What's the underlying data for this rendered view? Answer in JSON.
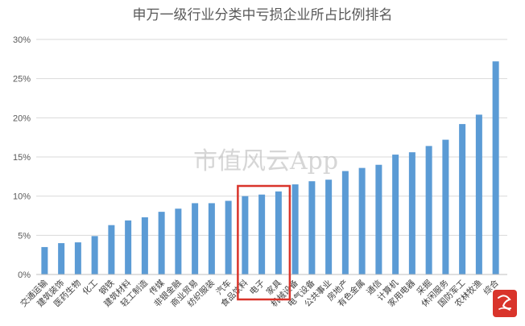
{
  "watermark": "市值风云App",
  "colors": {
    "bar": "#5b9bd5",
    "highlight": "#d9342b",
    "grid": "#d9d9d9",
    "text": "#595959",
    "logo": "#d9342b"
  },
  "chart_data": {
    "type": "bar",
    "title": "申万一级行业分类中亏损企业所占比例排名",
    "categories": [
      "交通运输",
      "建筑装饰",
      "医药生物",
      "化工",
      "钢铁",
      "建筑材料",
      "轻工制造",
      "传媒",
      "非银金融",
      "商业贸易",
      "纺织服装",
      "汽车",
      "食品饮料",
      "电子",
      "家具",
      "机械设备",
      "电气设备",
      "公共事业",
      "房地产",
      "有色金属",
      "通信",
      "计算机",
      "家用电器",
      "采掘",
      "休闲服务",
      "国防军工",
      "农林牧渔",
      "综合"
    ],
    "values": [
      3.5,
      4.0,
      4.1,
      4.9,
      6.3,
      6.9,
      7.3,
      8.0,
      8.4,
      9.1,
      9.1,
      9.4,
      10.0,
      10.2,
      10.6,
      11.5,
      11.9,
      12.1,
      13.2,
      13.6,
      14.0,
      15.3,
      15.6,
      16.4,
      17.2,
      19.2,
      20.4,
      27.2
    ],
    "ylim": [
      0,
      30
    ],
    "yticks": [
      0,
      5,
      10,
      15,
      20,
      25,
      30
    ],
    "ytick_labels": [
      "0%",
      "5%",
      "10%",
      "15%",
      "20%",
      "25%",
      "30%"
    ],
    "grid": true,
    "legend": "none",
    "highlighted_categories": [
      "食品饮料",
      "电子",
      "家具"
    ]
  }
}
